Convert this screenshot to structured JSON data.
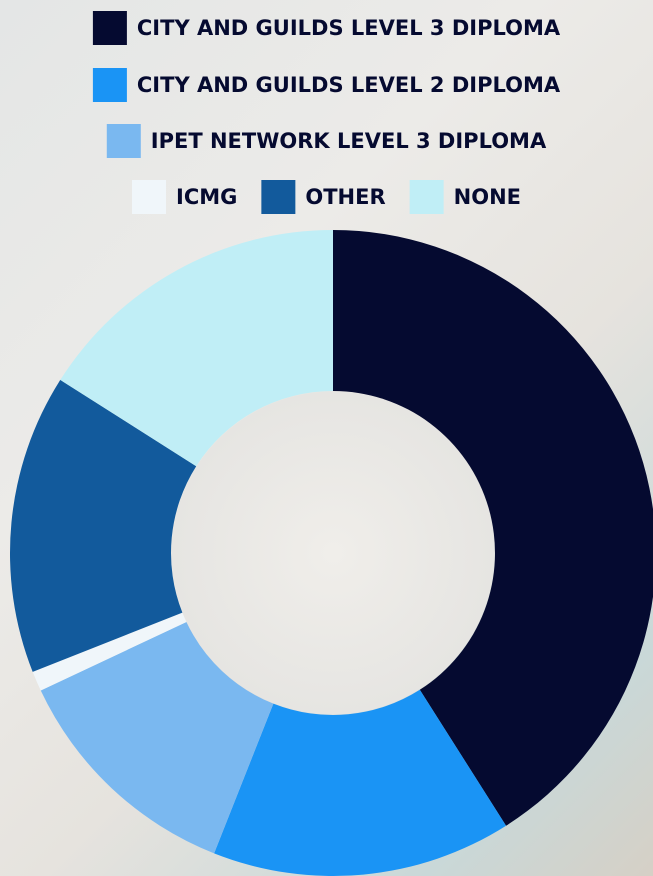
{
  "chart_data": {
    "type": "donut",
    "categories": [
      "CITY AND GUILDS LEVEL 3 DIPLOMA",
      "CITY AND GUILDS LEVEL 2 DIPLOMA",
      "IPET NETWORK LEVEL 3 DIPLOMA",
      "ICMG",
      "OTHER",
      "NONE"
    ],
    "values": [
      41,
      15,
      12,
      1,
      15,
      16
    ],
    "colors": [
      "#050a30",
      "#1a94f5",
      "#7ab8f0",
      "#f0f6fa",
      "#125a9c",
      "#c0eef6"
    ],
    "legend": "top"
  }
}
